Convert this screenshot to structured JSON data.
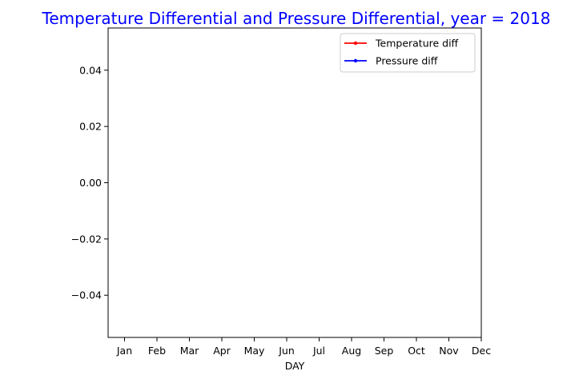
{
  "chart_data": {
    "type": "line",
    "title": "Temperature Differential and Pressure Differential, year = 2018",
    "title_color": "#0000ff",
    "xlabel": "DAY",
    "ylabel": "",
    "x_tick_labels": [
      "Jan",
      "Feb",
      "Mar",
      "Apr",
      "May",
      "Jun",
      "Jul",
      "Aug",
      "Sep",
      "Oct",
      "Nov",
      "Dec"
    ],
    "y_ticks": [
      0.04,
      0.02,
      0.0,
      -0.02,
      -0.04
    ],
    "y_tick_labels": [
      "0.04",
      "0.02",
      "0.00",
      "−0.02",
      "−0.04"
    ],
    "ylim": [
      -0.055,
      0.055
    ],
    "grid": false,
    "legend_position": "top-right",
    "series": [
      {
        "name": "Temperature diff",
        "color": "#ff0000",
        "marker": "point",
        "values": []
      },
      {
        "name": "Pressure diff",
        "color": "#0000ff",
        "marker": "point",
        "values": []
      }
    ]
  }
}
